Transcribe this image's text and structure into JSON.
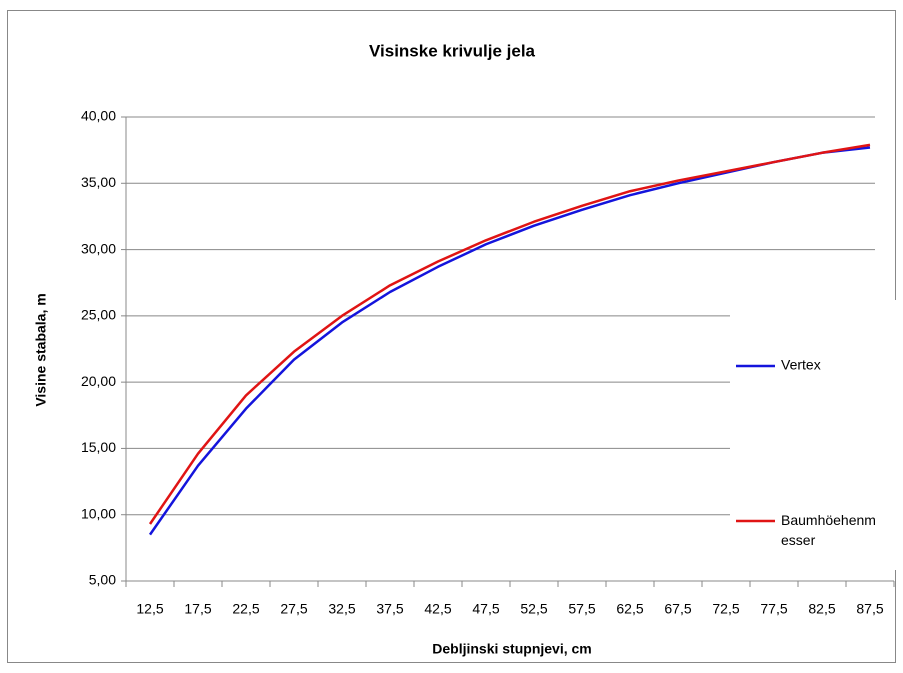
{
  "chart_data": {
    "type": "line",
    "title": "Visinske krivulje jela",
    "xlabel": "Debljinski stupnjevi, cm",
    "ylabel": "Visine stabala, m",
    "categories": [
      "12,5",
      "17,5",
      "22,5",
      "27,5",
      "32,5",
      "37,5",
      "42,5",
      "47,5",
      "52,5",
      "57,5",
      "62,5",
      "67,5",
      "72,5",
      "77,5",
      "82,5",
      "87,5"
    ],
    "series": [
      {
        "name": "Vertex",
        "color": "#1414dc",
        "values": [
          8.5,
          13.7,
          18.0,
          21.7,
          24.5,
          26.8,
          28.7,
          30.4,
          31.8,
          33.0,
          34.1,
          35.0,
          35.8,
          36.6,
          37.3,
          37.7
        ]
      },
      {
        "name": "Baumhöehenmesser",
        "color": "#e01414",
        "values": [
          9.3,
          14.6,
          19.0,
          22.3,
          25.0,
          27.3,
          29.1,
          30.7,
          32.1,
          33.3,
          34.4,
          35.2,
          35.9,
          36.6,
          37.3,
          37.9
        ]
      }
    ],
    "ylim": [
      5,
      40
    ],
    "yticks": [
      {
        "value": 5,
        "label": "5,00"
      },
      {
        "value": 10,
        "label": "10,00"
      },
      {
        "value": 15,
        "label": "15,00"
      },
      {
        "value": 20,
        "label": "20,00"
      },
      {
        "value": 25,
        "label": "25,00"
      },
      {
        "value": 30,
        "label": "30,00"
      },
      {
        "value": 35,
        "label": "35,00"
      },
      {
        "value": 40,
        "label": "40,00"
      }
    ],
    "grid": true,
    "legend": "right"
  }
}
